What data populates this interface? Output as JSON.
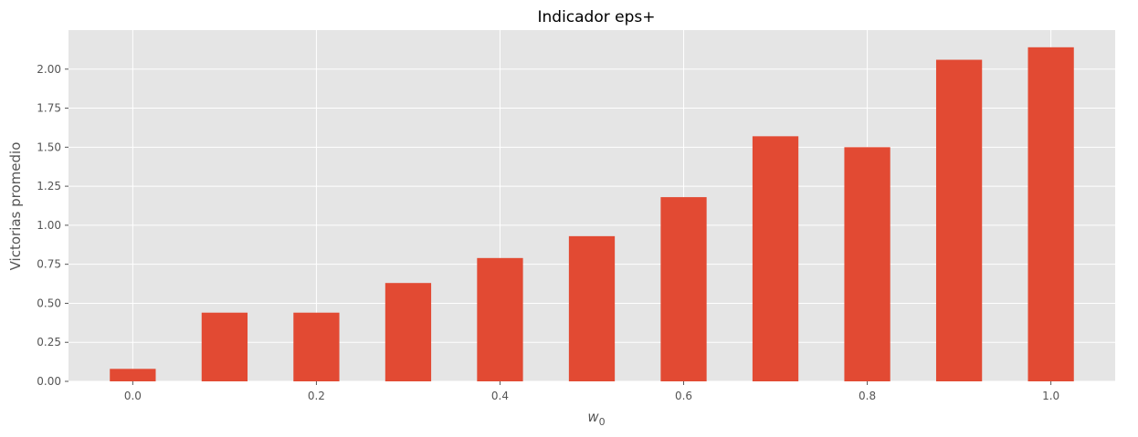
{
  "chart_data": {
    "type": "bar",
    "title": "Indicador eps+",
    "xlabel": "w",
    "xlabel_subscript": "0",
    "ylabel": "Victorias promedio",
    "x": [
      0.0,
      0.1,
      0.2,
      0.3,
      0.4,
      0.5,
      0.6,
      0.7,
      0.8,
      0.9,
      1.0
    ],
    "values": [
      0.08,
      0.44,
      0.44,
      0.63,
      0.79,
      0.93,
      1.18,
      1.57,
      1.5,
      2.06,
      2.14
    ],
    "xlim": [
      -0.07,
      1.07
    ],
    "ylim": [
      0,
      2.25
    ],
    "xticks": [
      0.0,
      0.2,
      0.4,
      0.6,
      0.8,
      1.0
    ],
    "xtick_labels": [
      "0.0",
      "0.2",
      "0.4",
      "0.6",
      "0.8",
      "1.0"
    ],
    "yticks": [
      0,
      0.25,
      0.5,
      0.75,
      1.0,
      1.25,
      1.5,
      1.75,
      2.0
    ],
    "ytick_labels": [
      "0.00",
      "0.25",
      "0.50",
      "0.75",
      "1.00",
      "1.25",
      "1.50",
      "1.75",
      "2.00"
    ],
    "bar_width": 0.05,
    "grid": true,
    "style": "ggplot",
    "colors": {
      "bar": "#E24A33",
      "background": "#E5E5E5",
      "grid": "#FFFFFF"
    }
  }
}
